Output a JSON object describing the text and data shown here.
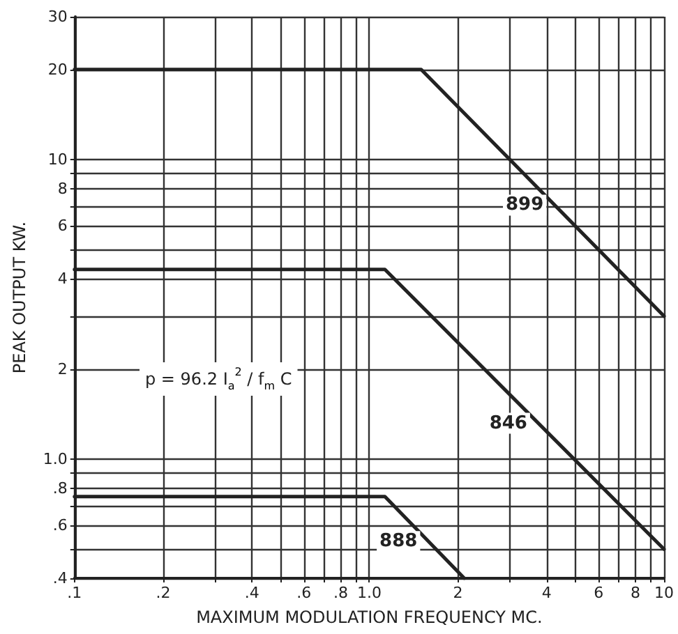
{
  "chart_data": {
    "type": "line",
    "xlabel": "MAXIMUM MODULATION FREQUENCY MC.",
    "ylabel": "PEAK OUTPUT KW.",
    "log": "xy",
    "grid": true,
    "legend": false,
    "marker": "none",
    "line_style": "solid",
    "xlim": [
      0.1,
      10
    ],
    "ylim": [
      0.4,
      30
    ],
    "xticks": [
      {
        "value": 0.1,
        "label": ".1"
      },
      {
        "value": 0.2,
        "label": ".2"
      },
      {
        "value": 0.3,
        "label": null
      },
      {
        "value": 0.4,
        "label": ".4"
      },
      {
        "value": 0.5,
        "label": null
      },
      {
        "value": 0.6,
        "label": ".6"
      },
      {
        "value": 0.7,
        "label": null
      },
      {
        "value": 0.8,
        "label": ".8"
      },
      {
        "value": 0.9,
        "label": null
      },
      {
        "value": 1,
        "label": "1.0"
      },
      2,
      {
        "value": 3,
        "label": null
      },
      4,
      {
        "value": 5,
        "label": null
      },
      6,
      {
        "value": 7,
        "label": null
      },
      8,
      {
        "value": 9,
        "label": null
      },
      10
    ],
    "yticks": [
      {
        "value": 0.4,
        "label": ".4"
      },
      {
        "value": 0.5,
        "label": null
      },
      {
        "value": 0.6,
        "label": ".6"
      },
      {
        "value": 0.7,
        "label": null
      },
      {
        "value": 0.8,
        "label": ".8"
      },
      {
        "value": 0.9,
        "label": null
      },
      {
        "value": 1,
        "label": "1.0"
      },
      2,
      {
        "value": 3,
        "label": null
      },
      4,
      {
        "value": 5,
        "label": null
      },
      6,
      {
        "value": 7,
        "label": null
      },
      8,
      {
        "value": 9,
        "label": null
      },
      10,
      20,
      30
    ],
    "series": [
      {
        "name": "899",
        "color": "#222222",
        "x": [
          0.1,
          1.5,
          10
        ],
        "values": [
          20,
          20,
          3
        ]
      },
      {
        "name": "846",
        "color": "#222222",
        "x": [
          0.1,
          1.13,
          10
        ],
        "values": [
          4.3,
          4.3,
          0.5
        ]
      },
      {
        "name": "888",
        "color": "#222222",
        "x": [
          0.1,
          1.13,
          2.1
        ],
        "values": [
          0.75,
          0.75,
          0.4
        ]
      }
    ],
    "annotations": [
      "p = 96.2 I$_{a}$$^{2}$ / f$_{m}$ C"
    ]
  }
}
